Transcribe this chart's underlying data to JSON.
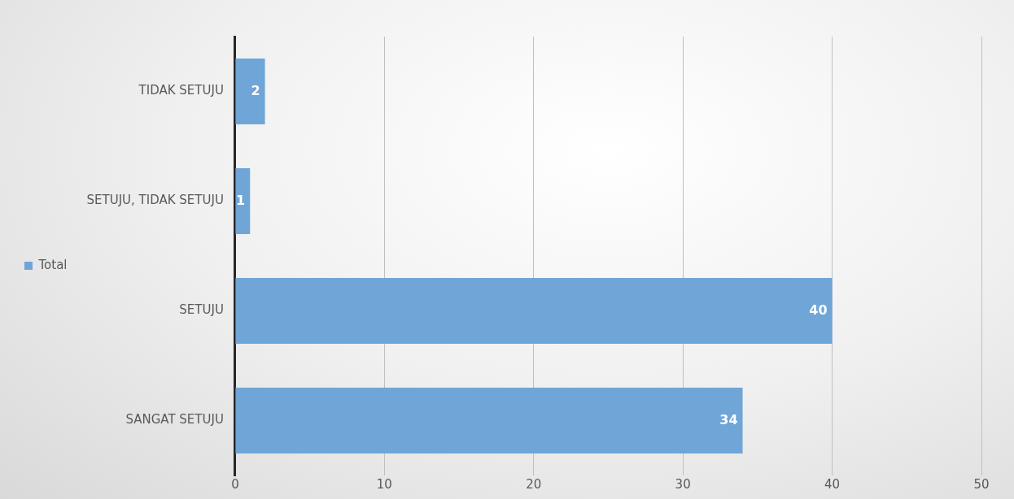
{
  "chart_data": {
    "type": "bar",
    "orientation": "horizontal",
    "categories": [
      "TIDAK SETUJU",
      "SETUJU, TIDAK SETUJU",
      "SETUJU",
      "SANGAT SETUJU"
    ],
    "series": [
      {
        "name": "Total",
        "color": "#6fa5d7",
        "values": [
          2,
          1,
          40,
          34
        ]
      }
    ],
    "xlim": [
      0,
      50
    ],
    "xticks": [
      0,
      10,
      20,
      30,
      40,
      50
    ],
    "grid": "x",
    "legend": "left",
    "data_labels": true
  }
}
